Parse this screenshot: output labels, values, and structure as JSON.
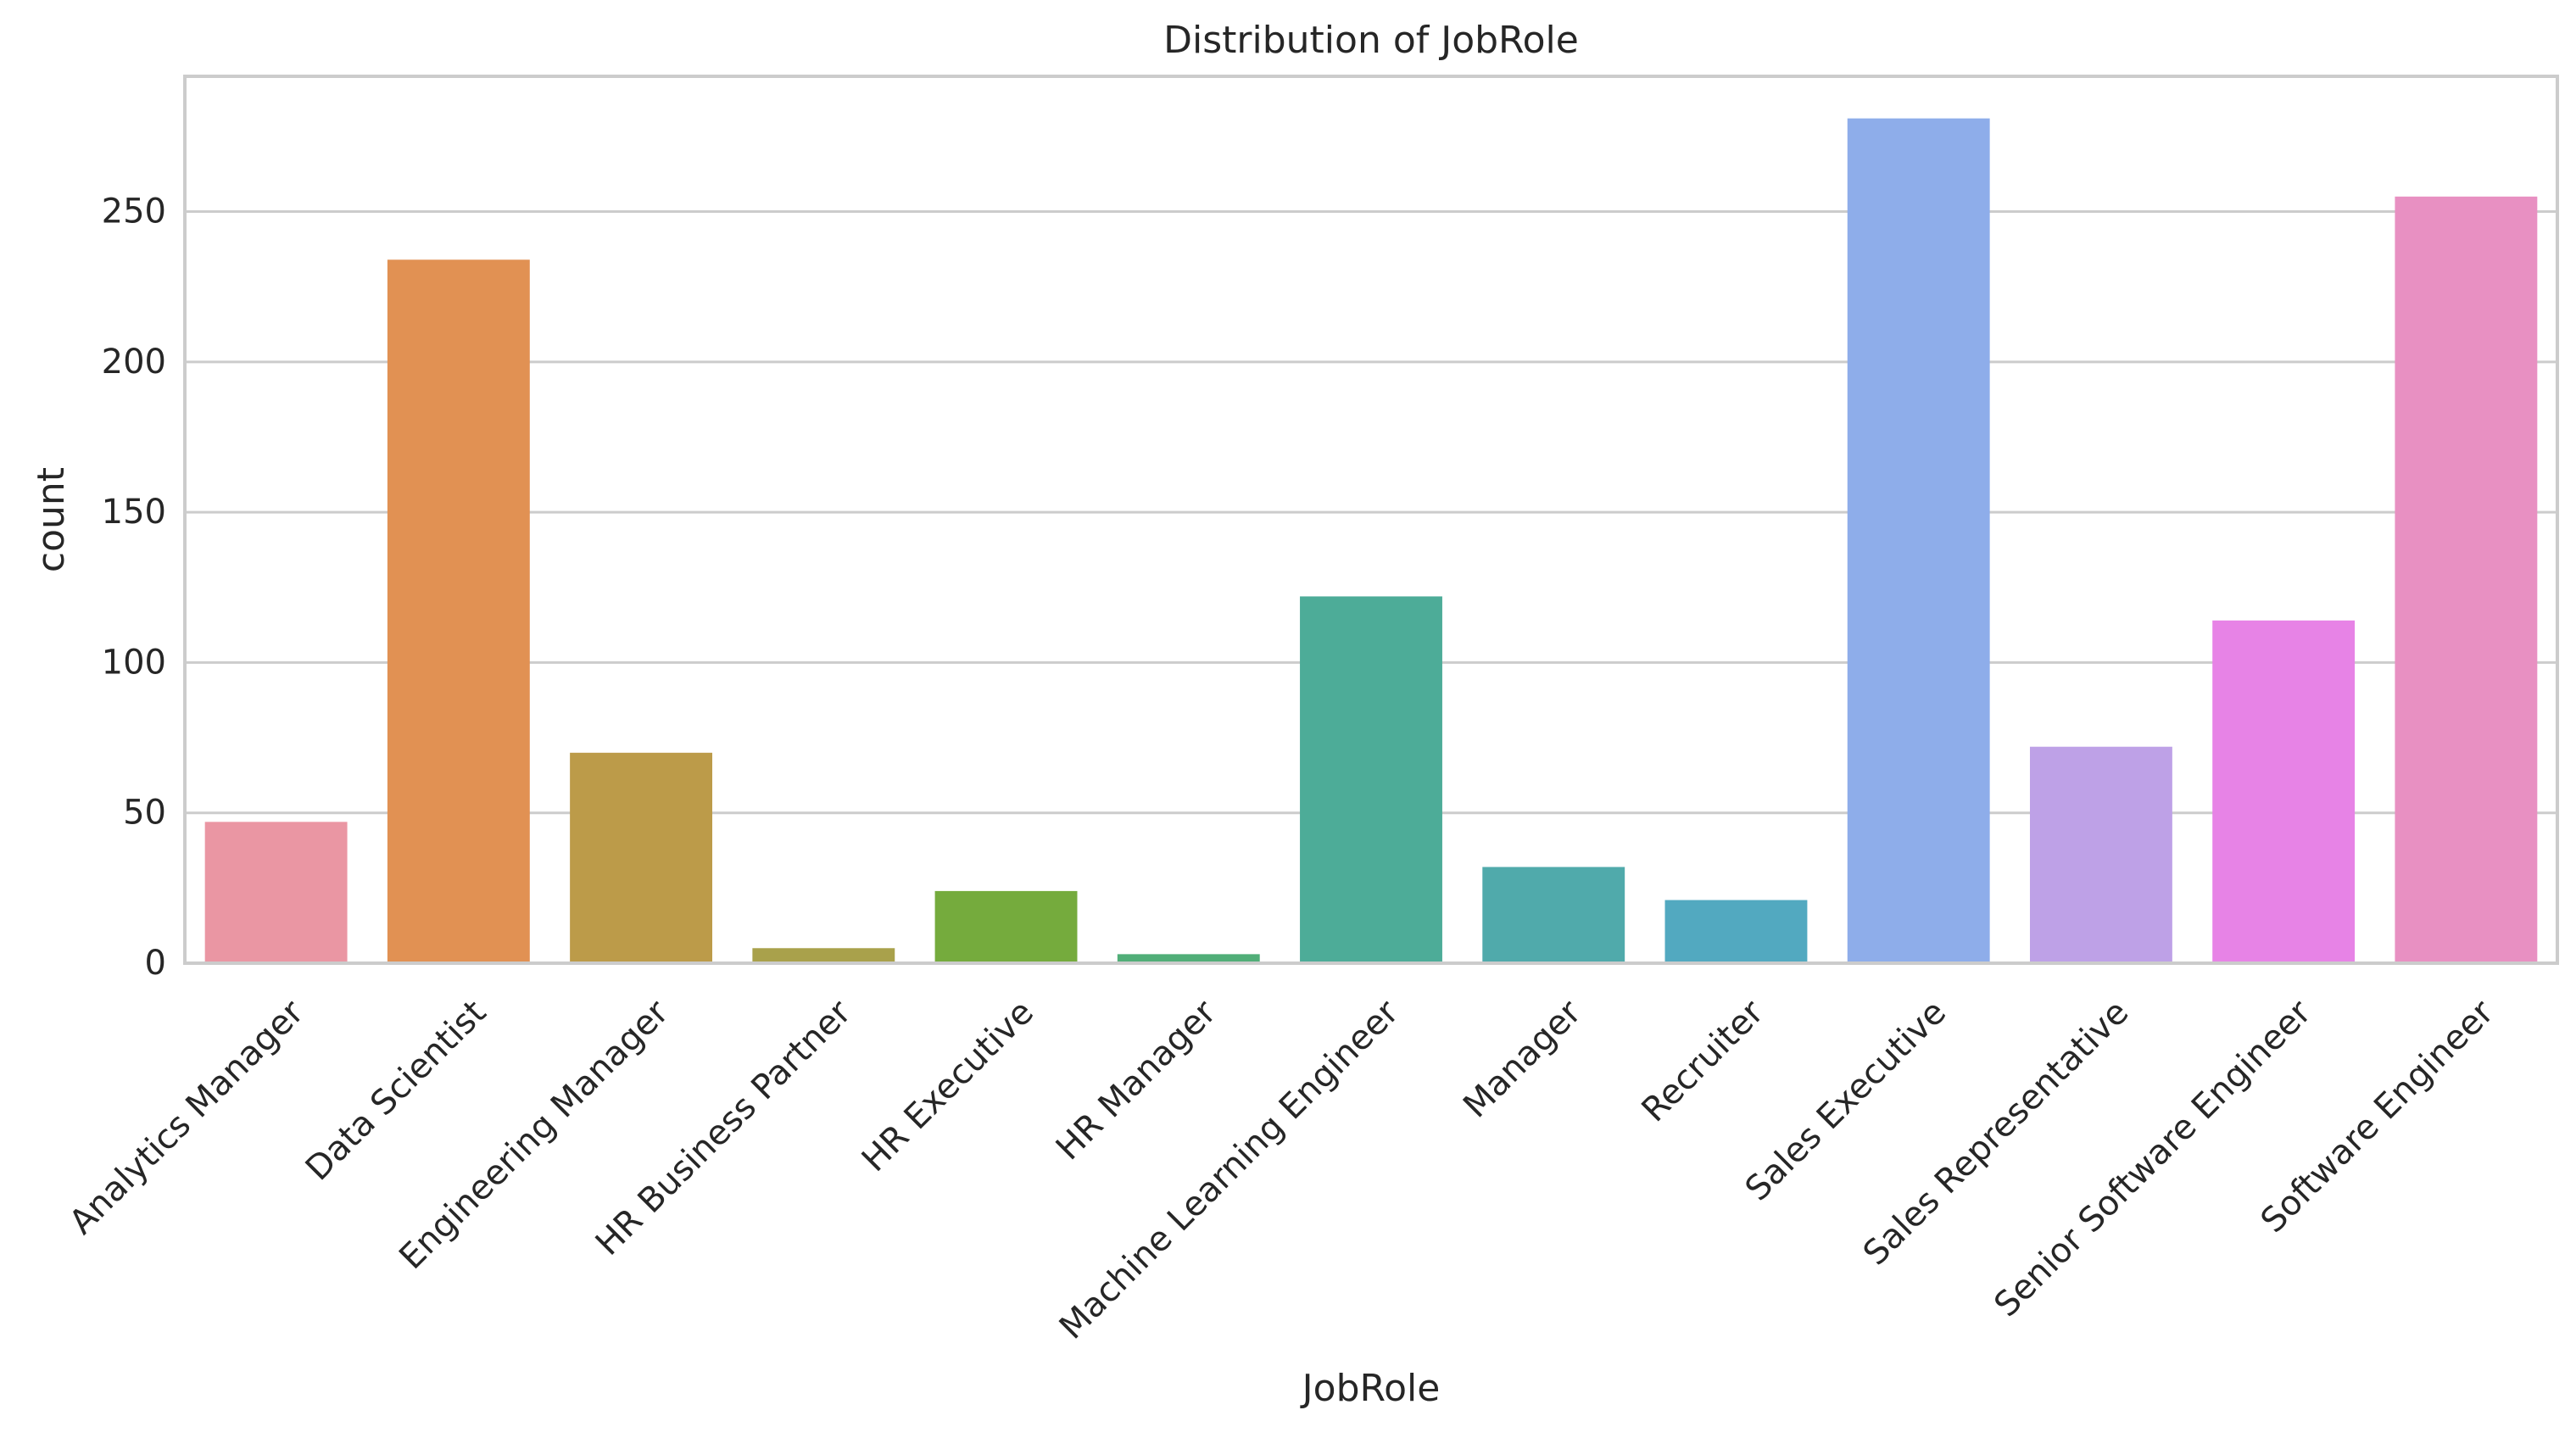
{
  "chart_data": {
    "type": "bar",
    "title": "Distribution of JobRole",
    "xlabel": "JobRole",
    "ylabel": "count",
    "ylim": [
      0,
      295
    ],
    "yticks": [
      0,
      50,
      100,
      150,
      200,
      250
    ],
    "grid": "horizontal",
    "categories": [
      "Analytics Manager",
      "Data Scientist",
      "Engineering Manager",
      "HR Business Partner",
      "HR Executive",
      "HR Manager",
      "Machine Learning Engineer",
      "Manager",
      "Recruiter",
      "Sales Executive",
      "Sales Representative",
      "Senior Software Engineer",
      "Software Engineer"
    ],
    "values": [
      47,
      234,
      70,
      5,
      24,
      3,
      122,
      32,
      21,
      281,
      72,
      114,
      255
    ],
    "colors": [
      "#ea96a3",
      "#e19153",
      "#bc9b49",
      "#a9a14b",
      "#75ab3d",
      "#51ae78",
      "#4dac98",
      "#50aaab",
      "#52a9c0",
      "#8eadea",
      "#bea1e7",
      "#e783e6",
      "#e890c2"
    ],
    "grid_color": "#cccccc",
    "frame_color": "#cccccc"
  }
}
